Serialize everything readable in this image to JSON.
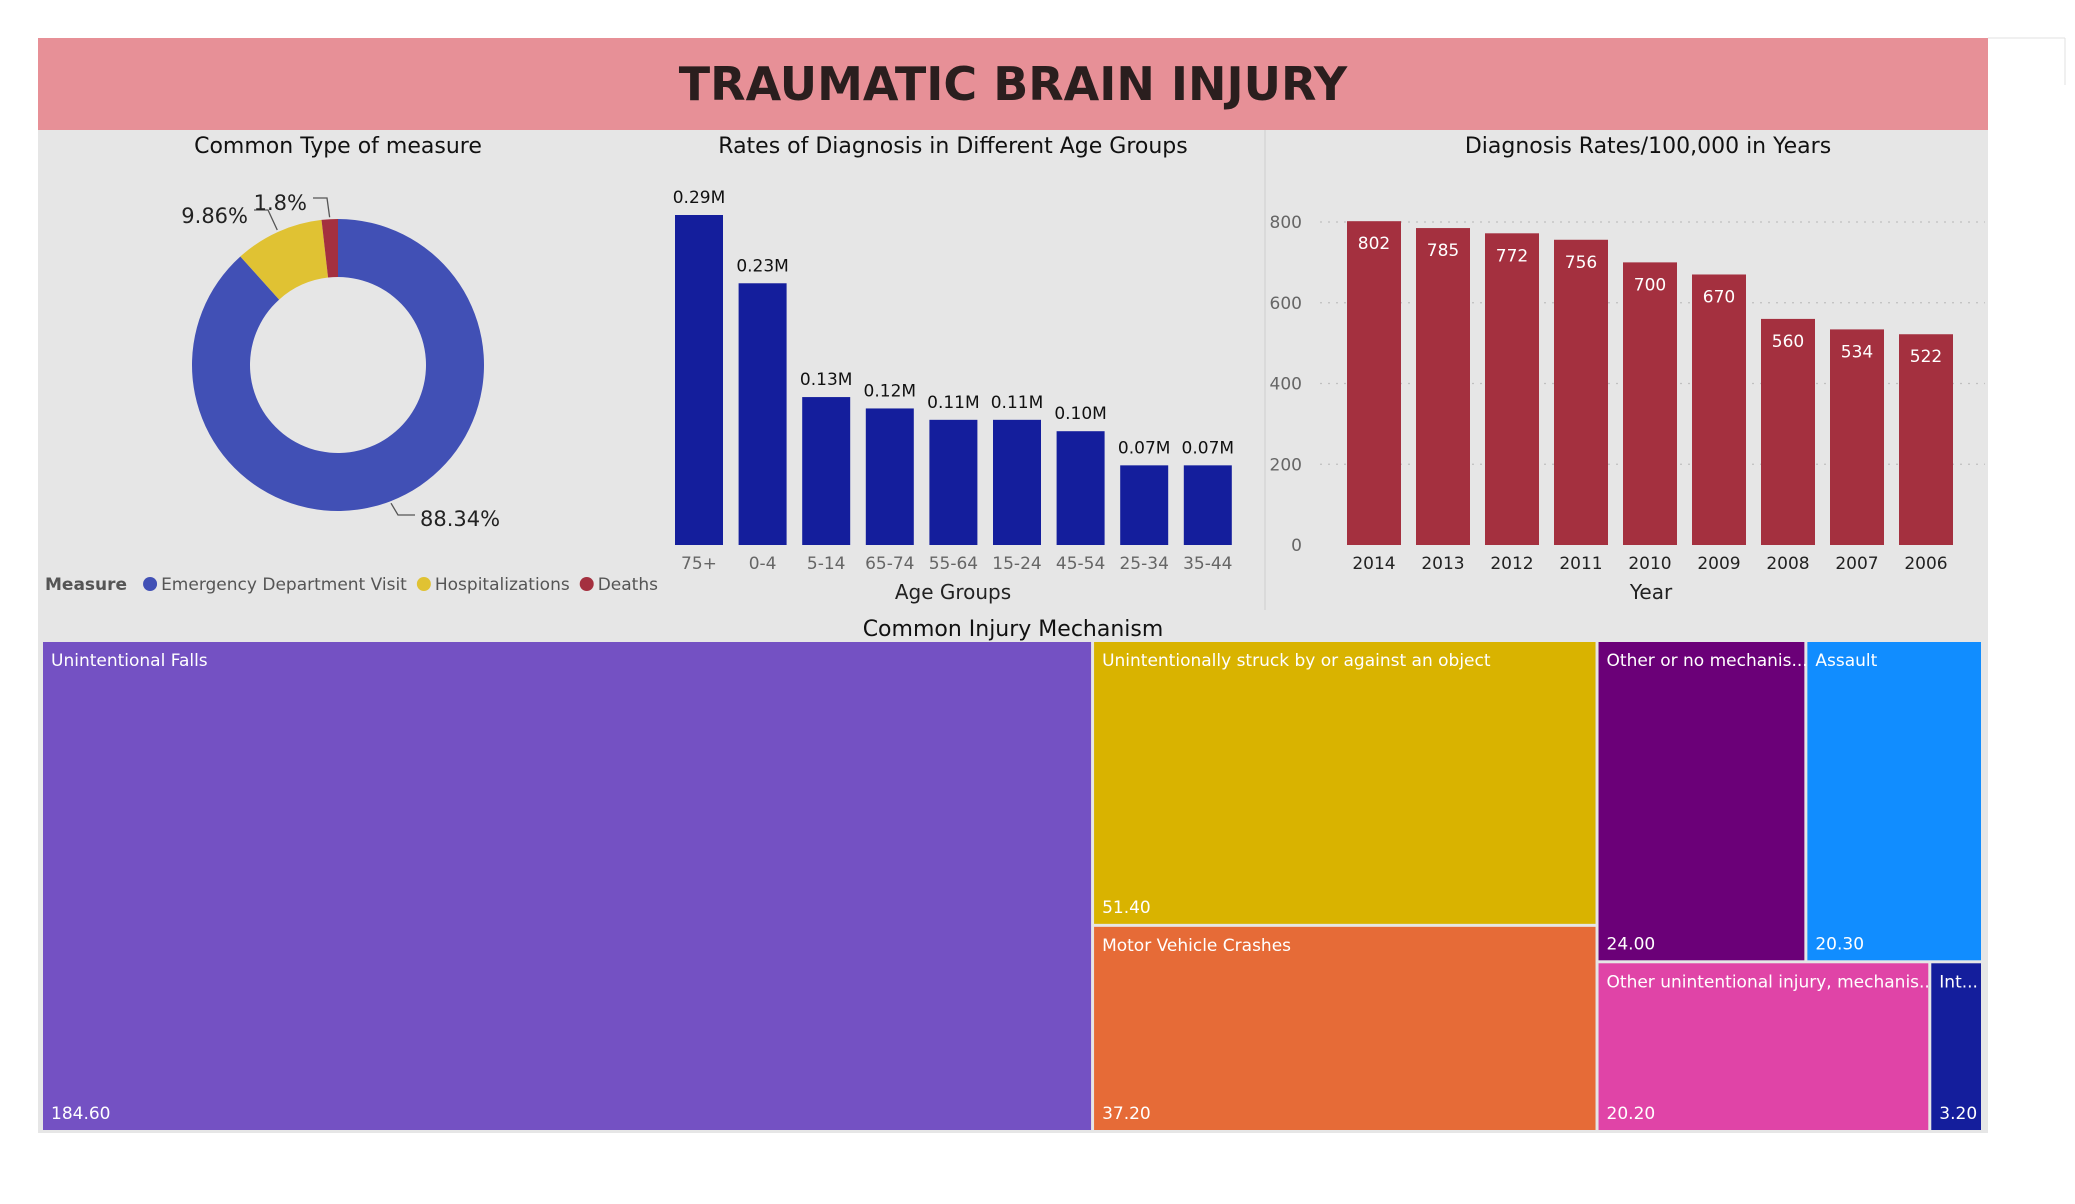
{
  "dashboard": {
    "title": "TRAUMATIC BRAIN INJURY",
    "colors": {
      "banner": "#e79097",
      "panel": "#e6e6e6",
      "title_text": "#2a1e1e"
    }
  },
  "chart_data": [
    {
      "id": "donut",
      "type": "pie",
      "title": "Common Type of measure",
      "legend_title": "Measure",
      "legend_position": "bottom-left",
      "hole": true,
      "slices": [
        {
          "label": "Emergency Department Visit",
          "value": 88.34,
          "value_label": "88.34%",
          "color": "#4150b5"
        },
        {
          "label": "Hospitalizations",
          "value": 9.86,
          "value_label": "9.86%",
          "color": "#e0c233"
        },
        {
          "label": "Deaths",
          "value": 1.8,
          "value_label": "1.8%",
          "color": "#a4303f"
        }
      ]
    },
    {
      "id": "age",
      "type": "bar",
      "title": "Rates of Diagnosis in Different Age Groups",
      "xlabel": "Age Groups",
      "ylabel": "",
      "color": "#141e9c",
      "categories": [
        "75+",
        "0-4",
        "5-14",
        "65-74",
        "55-64",
        "15-24",
        "45-54",
        "25-34",
        "35-44"
      ],
      "values": [
        0.29,
        0.23,
        0.13,
        0.12,
        0.11,
        0.11,
        0.1,
        0.07,
        0.07
      ],
      "value_labels": [
        "0.29M",
        "0.23M",
        "0.13M",
        "0.12M",
        "0.11M",
        "0.11M",
        "0.10M",
        "0.07M",
        "0.07M"
      ],
      "grid": false
    },
    {
      "id": "years",
      "type": "bar",
      "title": "Diagnosis Rates/100,000 in Years",
      "xlabel": "Year",
      "ylabel": "",
      "color": "#a4303f",
      "categories": [
        "2014",
        "2013",
        "2012",
        "2011",
        "2010",
        "2009",
        "2008",
        "2007",
        "2006"
      ],
      "values": [
        802,
        785,
        772,
        756,
        700,
        670,
        560,
        534,
        522
      ],
      "ylim": [
        0,
        800
      ],
      "yticks": [
        "0",
        "200",
        "400",
        "600",
        "800"
      ],
      "grid": true
    },
    {
      "id": "treemap",
      "type": "treemap",
      "title": "Common Injury Mechanism",
      "items": [
        {
          "label": "Unintentional Falls",
          "value": 184.6,
          "value_label": "184.60",
          "color": "#7451c3"
        },
        {
          "label": "Unintentionally struck by or against an object",
          "value": 51.4,
          "value_label": "51.40",
          "color": "#d9b300"
        },
        {
          "label": "Motor Vehicle Crashes",
          "value": 37.2,
          "value_label": "37.20",
          "color": "#e66b37"
        },
        {
          "label": "Other or no mechanis...",
          "value": 24.0,
          "value_label": "24.00",
          "color": "#6b0078"
        },
        {
          "label": "Assault",
          "value": 20.3,
          "value_label": "20.30",
          "color": "#118dff"
        },
        {
          "label": "Other unintentional injury, mechanis...",
          "value": 20.2,
          "value_label": "20.20",
          "color": "#e044a7"
        },
        {
          "label": "Int...",
          "value": 3.2,
          "value_label": "3.20",
          "color": "#141e9c"
        }
      ]
    }
  ]
}
